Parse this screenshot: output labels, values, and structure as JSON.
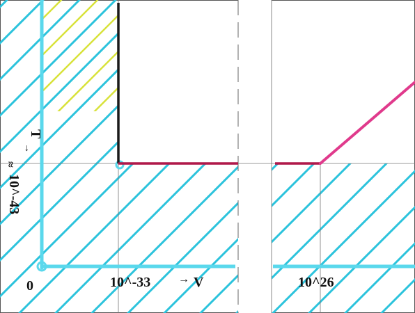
{
  "labels": {
    "t_axis": "T",
    "t_value": "10^-43",
    "t_value_prefix": "≈",
    "origin": "0",
    "v_value_1": "10^-33",
    "v_axis": "V",
    "v_value_2": "10^26"
  },
  "colors": {
    "hatch": "#2cc3dc",
    "axis": "#5ad8ec",
    "boundary_dark": "#1a1a1a",
    "boundary_red": "#b0184a",
    "diagonal_magenta": "#e03a8c",
    "hatch_yellow": "#d8e23a",
    "grid": "#777777"
  }
}
